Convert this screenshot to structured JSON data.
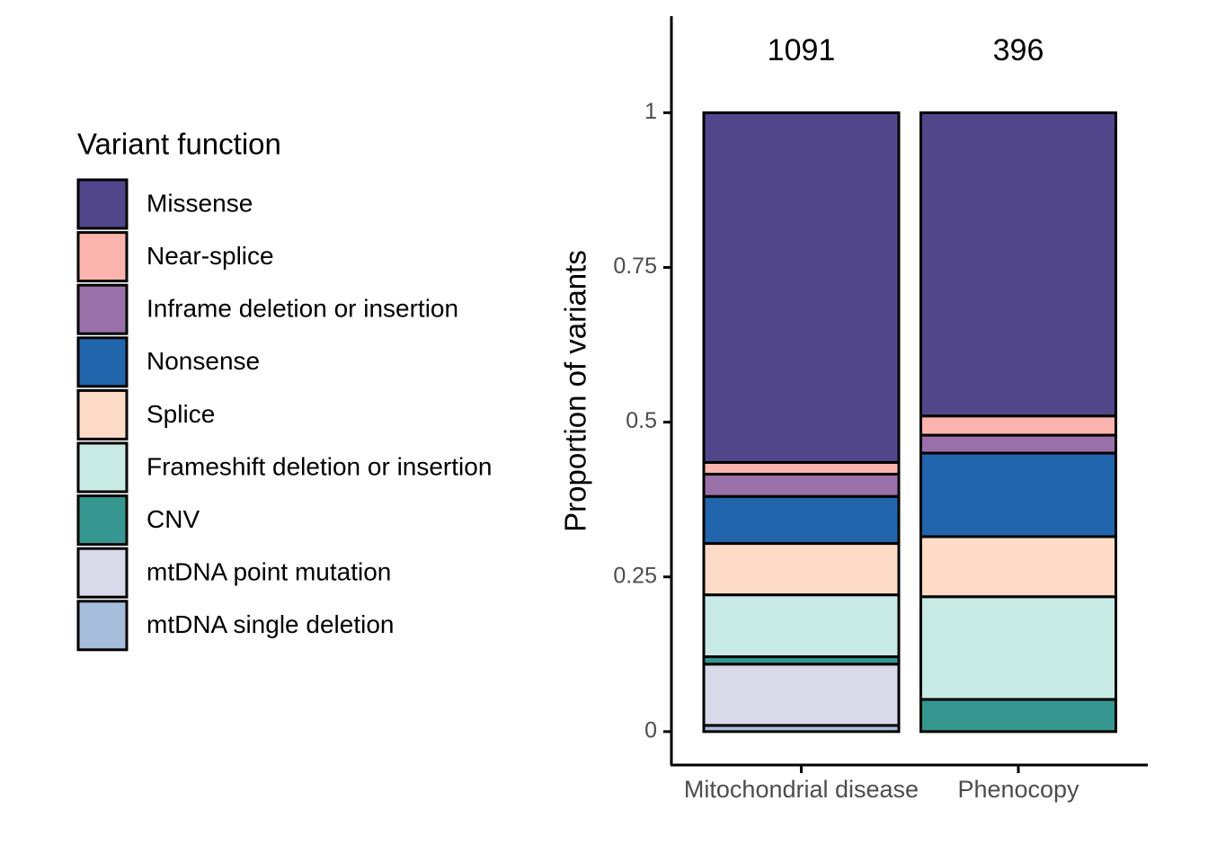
{
  "chart_data": {
    "type": "stacked_bar",
    "y_label": "Proportion of variants",
    "legend_title": "Variant function",
    "categories": [
      "Mitochondrial disease",
      "Phenocopy"
    ],
    "counts": [
      1091,
      396
    ],
    "ylim": [
      -0.054,
      1.156
    ],
    "yticks": [
      0,
      0.25,
      0.5,
      0.75,
      1
    ],
    "series": [
      {
        "name": "Missense",
        "color": "#51478a",
        "values": [
          0.565,
          0.49
        ]
      },
      {
        "name": "Near-splice",
        "color": "#fbb4ae",
        "values": [
          0.019,
          0.031
        ]
      },
      {
        "name": "Inframe deletion or insertion",
        "color": "#9a70a9",
        "values": [
          0.036,
          0.029
        ]
      },
      {
        "name": "Nonsense",
        "color": "#2166ac",
        "values": [
          0.076,
          0.135
        ]
      },
      {
        "name": "Splice",
        "color": "#fddbc7",
        "values": [
          0.083,
          0.097
        ]
      },
      {
        "name": "Frameshift deletion or insertion",
        "color": "#c7eae5",
        "values": [
          0.1,
          0.166
        ]
      },
      {
        "name": "CNV",
        "color": "#35978f",
        "values": [
          0.012,
          0.052
        ]
      },
      {
        "name": "mtDNA point mutation",
        "color": "#d9d9ea",
        "values": [
          0.099,
          0
        ]
      },
      {
        "name": "mtDNA single deletion",
        "color": "#a6bddb",
        "values": [
          0.01,
          0
        ]
      }
    ]
  }
}
